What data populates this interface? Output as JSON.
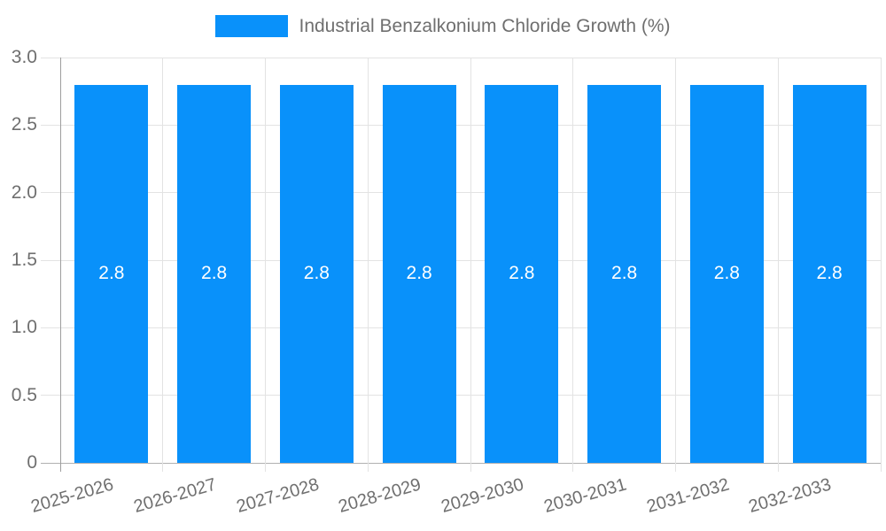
{
  "chart_data": {
    "type": "bar",
    "title": "Industrial Benzalkonium Chloride Growth (%)",
    "categories": [
      "2025-2026",
      "2026-2027",
      "2027-2028",
      "2028-2029",
      "2029-2030",
      "2030-2031",
      "2031-2032",
      "2032-2033"
    ],
    "values": [
      2.8,
      2.8,
      2.8,
      2.8,
      2.8,
      2.8,
      2.8,
      2.8
    ],
    "bar_value_labels": [
      "2.8",
      "2.8",
      "2.8",
      "2.8",
      "2.8",
      "2.8",
      "2.8",
      "2.8"
    ],
    "xlabel": "",
    "ylabel": "",
    "ylim": [
      0,
      3
    ],
    "yticks": [
      {
        "value": 0,
        "label": "0"
      },
      {
        "value": 0.5,
        "label": "0.5"
      },
      {
        "value": 1,
        "label": "1.0"
      },
      {
        "value": 1.5,
        "label": "1.5"
      },
      {
        "value": 2,
        "label": "2.0"
      },
      {
        "value": 2.5,
        "label": "2.5"
      },
      {
        "value": 3,
        "label": "3.0"
      }
    ],
    "grid": true,
    "legend_position": "top",
    "colors": {
      "bar": "#0991fa",
      "gridline": "#e3e3e3",
      "x_axis_line": "#b0b0b0",
      "y_axis_line": "#9e9e9e",
      "tick_label": "#6f6f6f",
      "legend_text": "#6f6f6f",
      "value_label": "#ffffff",
      "background": "#ffffff"
    }
  }
}
